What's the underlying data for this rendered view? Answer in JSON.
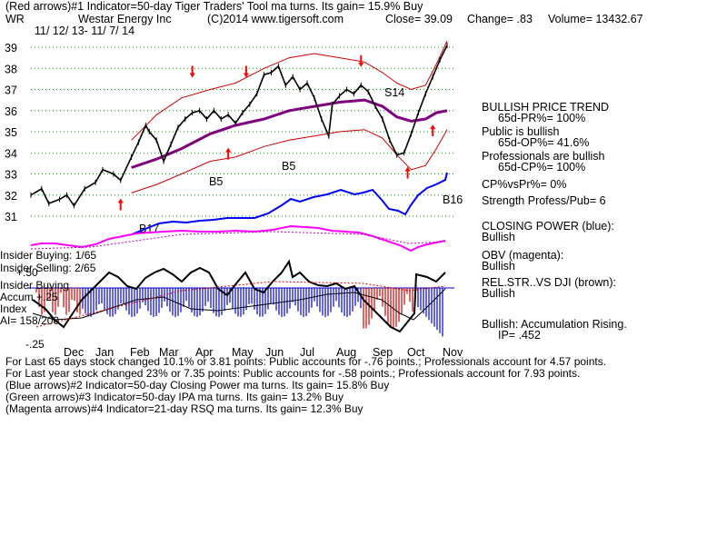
{
  "header": {
    "line1": "(Red arrows)#1 Indicator=50-day Tiger Traders' Tool ma turns. Its gain= 15.9% Buy",
    "line2": {
      "ticker": "WR",
      "company": "Westar Energy Inc",
      "copyright": "(C)2014 www.tigersoft.com",
      "close": "Close=  39.09",
      "change": "Change= .83",
      "volume": "Volume= 13432.67"
    },
    "date_range": "11/ 12/ 13- 11/ 7/ 14"
  },
  "colors": {
    "price": "#000000",
    "ma": "#800080",
    "bands": "#cc0000",
    "closing_power": "#0000ff",
    "obv": "#ff00ff",
    "rel_strength": "#8b4513",
    "accum_pos": "#0000cc",
    "accum_neg": "#cc0000",
    "grid_dot": "#009900",
    "arrow_red": "#ff0000"
  },
  "chart_data": {
    "type": "line",
    "title": "Westar Energy Inc",
    "y_ticks": [
      31,
      32,
      33,
      34,
      35,
      36,
      37,
      38,
      39
    ],
    "ylim": [
      30.4,
      39.6
    ],
    "x_month_labels": [
      "Dec",
      "Jan",
      "Feb",
      "Mar",
      "Apr",
      "May",
      "Jun",
      "Jul",
      "Aug",
      "Sep",
      "Oct",
      "Nov"
    ],
    "series": [
      {
        "role": "price",
        "points": [
          [
            0,
            32.0
          ],
          [
            3,
            32.3
          ],
          [
            5,
            31.6
          ],
          [
            8,
            31.8
          ],
          [
            10,
            32.0
          ],
          [
            12,
            31.5
          ],
          [
            15,
            32.3
          ],
          [
            18,
            32.6
          ],
          [
            20,
            33.2
          ],
          [
            23,
            33.0
          ],
          [
            25,
            32.7
          ],
          [
            28,
            33.8
          ],
          [
            30,
            34.5
          ],
          [
            32,
            35.3
          ],
          [
            33,
            35.0
          ],
          [
            35,
            34.6
          ],
          [
            37,
            33.6
          ],
          [
            39,
            34.4
          ],
          [
            41,
            35.2
          ],
          [
            43,
            35.6
          ],
          [
            45,
            35.9
          ],
          [
            47,
            36.0
          ],
          [
            49,
            35.6
          ],
          [
            51,
            36.0
          ],
          [
            53,
            35.6
          ],
          [
            55,
            35.8
          ],
          [
            57,
            35.4
          ],
          [
            59,
            35.9
          ],
          [
            61,
            36.3
          ],
          [
            63,
            36.8
          ],
          [
            65,
            37.7
          ],
          [
            67,
            37.8
          ],
          [
            69,
            38.1
          ],
          [
            71,
            37.2
          ],
          [
            73,
            37.6
          ],
          [
            75,
            37.0
          ],
          [
            77,
            37.3
          ],
          [
            79,
            36.6
          ],
          [
            81,
            35.6
          ],
          [
            83,
            34.8
          ],
          [
            84,
            36.3
          ],
          [
            86,
            36.7
          ],
          [
            88,
            37.0
          ],
          [
            90,
            36.8
          ],
          [
            92,
            37.2
          ],
          [
            94,
            36.9
          ],
          [
            96,
            36.2
          ],
          [
            98,
            35.6
          ],
          [
            100,
            34.6
          ],
          [
            102,
            33.9
          ],
          [
            104,
            34.0
          ],
          [
            106,
            34.9
          ],
          [
            108,
            35.9
          ],
          [
            110,
            36.8
          ],
          [
            112,
            37.6
          ],
          [
            114,
            38.4
          ],
          [
            116,
            39.09
          ]
        ]
      },
      {
        "role": "moving_average",
        "points": [
          [
            28,
            33.3
          ],
          [
            35,
            33.7
          ],
          [
            42,
            34.2
          ],
          [
            50,
            34.9
          ],
          [
            57,
            35.3
          ],
          [
            65,
            35.6
          ],
          [
            72,
            36.0
          ],
          [
            79,
            36.2
          ],
          [
            86,
            36.4
          ],
          [
            93,
            36.5
          ],
          [
            98,
            36.2
          ],
          [
            102,
            35.7
          ],
          [
            106,
            35.5
          ],
          [
            110,
            35.6
          ],
          [
            113,
            35.9
          ],
          [
            116,
            36.0
          ]
        ]
      },
      {
        "role": "upper_band",
        "points": [
          [
            28,
            34.6
          ],
          [
            35,
            35.8
          ],
          [
            42,
            36.6
          ],
          [
            50,
            37.0
          ],
          [
            57,
            37.3
          ],
          [
            65,
            38.0
          ],
          [
            72,
            38.5
          ],
          [
            79,
            38.7
          ],
          [
            86,
            38.5
          ],
          [
            93,
            38.3
          ],
          [
            98,
            37.8
          ],
          [
            102,
            37.3
          ],
          [
            106,
            37.0
          ],
          [
            110,
            37.2
          ],
          [
            113,
            38.2
          ],
          [
            116,
            39.3
          ]
        ]
      },
      {
        "role": "lower_band",
        "points": [
          [
            28,
            32.1
          ],
          [
            35,
            32.5
          ],
          [
            42,
            33.0
          ],
          [
            50,
            33.6
          ],
          [
            57,
            33.8
          ],
          [
            65,
            34.3
          ],
          [
            72,
            34.6
          ],
          [
            79,
            34.8
          ],
          [
            86,
            35.0
          ],
          [
            93,
            35.1
          ],
          [
            98,
            34.7
          ],
          [
            102,
            33.9
          ],
          [
            106,
            33.2
          ],
          [
            110,
            33.4
          ],
          [
            113,
            34.2
          ],
          [
            116,
            35.1
          ]
        ]
      }
    ],
    "chart_labels": {
      "s14": "S14",
      "b5a": "B5",
      "b5b": "B5",
      "b16": "B16",
      "b17": "B17"
    },
    "red_arrows_down": [
      [
        45,
        37.0
      ],
      [
        60,
        37.0
      ],
      [
        92,
        37.5
      ]
    ],
    "red_arrows_up": [
      [
        25,
        32.4
      ],
      [
        55,
        34.8
      ],
      [
        105,
        33.9
      ],
      [
        112,
        35.9
      ]
    ],
    "insider": {
      "buying": "Insider Buying: 1/65",
      "selling": "Insider Selling: 2/65"
    },
    "accum_labels": {
      "plus_50": "+.50",
      "title_line1": "Insider Buying",
      "title_line2": "Accum  +.25",
      "title_line3": "Index",
      "ai": "AI= 158/200",
      "minus_25": "-.25"
    }
  },
  "right_panel": {
    "trend_title": "BULLISH PRICE TREND",
    "pr_line": "65d-PR%= 100%",
    "public_line1": "Public is bullish",
    "public_line2": "65d-OP%= 41.6%",
    "pro_line1": "Professionals are bullish",
    "pro_line2": "65d-CP%= 100%",
    "cpvspr": "CP%vsPr%=  0%",
    "strength": "Strength Profess/Pub= 6",
    "closing_power_title": "CLOSING POWER (blue):",
    "closing_power_value": "Bullish",
    "obv_title": "OBV (magenta):",
    "obv_value": "Bullish",
    "rel_title": "REL.STR..VS DJI (brown):",
    "rel_value": "Bullish",
    "accum_title": "Bullish: Accumulation Rising.",
    "ip_line": "IP=  .452"
  },
  "footer": {
    "line1": "For Last 65 days stock changed  10.1% or  3.81 points:  Public accounts for -.76 points.;  Professionals account for  4.57 points.",
    "line2": "For Last year stock changed  23% or  7.35 points:  Public accounts for -.58 points.;  Professionals account for  7.93 points.",
    "line3": "(Blue arrows)#2 Indicator=50-day Closing Power ma turns. Its gain= 15.8% Buy",
    "line4": "(Green arrows)#3 Indicator=50-day IPA ma turns. Its gain= 13.2% Buy",
    "line5": "(Magenta arrows)#4 Indicator=21-day RSQ ma turns. Its gain= 12.3% Buy"
  }
}
